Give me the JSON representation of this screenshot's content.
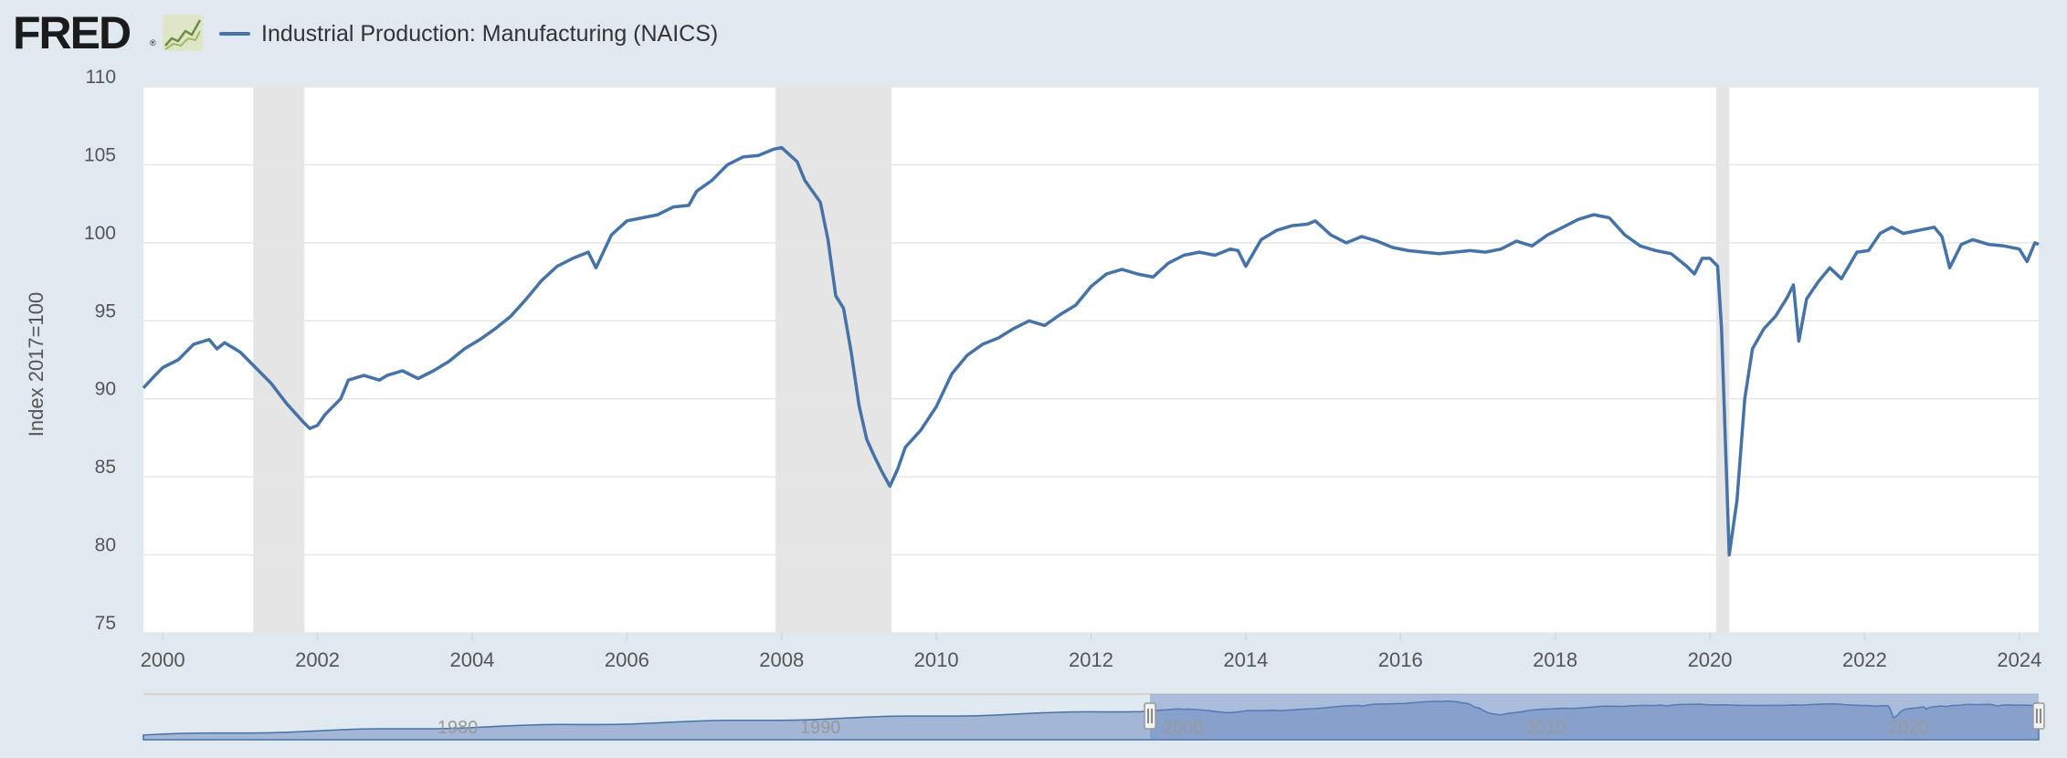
{
  "header": {
    "logo_text": "FRED",
    "logo_reg": "®",
    "logo_icon": "chart-line-icon",
    "legend_label": "Industrial Production: Manufacturing (NAICS)"
  },
  "colors": {
    "series": "#4572a7",
    "recession": "#e5e5e5",
    "plot_bg": "#ffffff",
    "page_bg": "#e1e9f0",
    "navigator_fill": "#8aa4d1"
  },
  "chart_data": {
    "type": "line",
    "title": "",
    "ylabel": "Index 2017=100",
    "xlabel": "",
    "x_range": [
      1999.75,
      2024.25
    ],
    "ylim": [
      75,
      110
    ],
    "y_ticks": [
      75,
      80,
      85,
      90,
      95,
      100,
      105,
      110
    ],
    "x_ticks": [
      2000,
      2002,
      2004,
      2006,
      2008,
      2010,
      2012,
      2014,
      2016,
      2018,
      2020,
      2022,
      2024
    ],
    "grid": "horizontal",
    "recessions": [
      [
        2001.17,
        2001.83
      ],
      [
        2007.92,
        2009.42
      ],
      [
        2020.08,
        2020.25
      ]
    ],
    "series": [
      {
        "name": "Industrial Production: Manufacturing (NAICS)",
        "points": [
          [
            1999.75,
            90.7
          ],
          [
            1999.9,
            91.5
          ],
          [
            2000.0,
            92.0
          ],
          [
            2000.2,
            92.5
          ],
          [
            2000.4,
            93.5
          ],
          [
            2000.6,
            93.8
          ],
          [
            2000.7,
            93.2
          ],
          [
            2000.8,
            93.6
          ],
          [
            2001.0,
            93.0
          ],
          [
            2001.2,
            92.0
          ],
          [
            2001.4,
            91.0
          ],
          [
            2001.6,
            89.7
          ],
          [
            2001.8,
            88.6
          ],
          [
            2001.9,
            88.1
          ],
          [
            2002.0,
            88.3
          ],
          [
            2002.1,
            89.0
          ],
          [
            2002.3,
            90.0
          ],
          [
            2002.4,
            91.2
          ],
          [
            2002.6,
            91.5
          ],
          [
            2002.8,
            91.2
          ],
          [
            2002.9,
            91.5
          ],
          [
            2003.1,
            91.8
          ],
          [
            2003.3,
            91.3
          ],
          [
            2003.5,
            91.8
          ],
          [
            2003.7,
            92.4
          ],
          [
            2003.9,
            93.2
          ],
          [
            2004.1,
            93.8
          ],
          [
            2004.3,
            94.5
          ],
          [
            2004.5,
            95.3
          ],
          [
            2004.7,
            96.4
          ],
          [
            2004.9,
            97.6
          ],
          [
            2005.1,
            98.5
          ],
          [
            2005.3,
            99.0
          ],
          [
            2005.5,
            99.4
          ],
          [
            2005.6,
            98.4
          ],
          [
            2005.8,
            100.5
          ],
          [
            2006.0,
            101.4
          ],
          [
            2006.2,
            101.6
          ],
          [
            2006.4,
            101.8
          ],
          [
            2006.6,
            102.3
          ],
          [
            2006.8,
            102.4
          ],
          [
            2006.9,
            103.3
          ],
          [
            2007.1,
            104.0
          ],
          [
            2007.3,
            105.0
          ],
          [
            2007.5,
            105.5
          ],
          [
            2007.7,
            105.6
          ],
          [
            2007.9,
            106.0
          ],
          [
            2008.0,
            106.1
          ],
          [
            2008.2,
            105.2
          ],
          [
            2008.3,
            104.0
          ],
          [
            2008.5,
            102.6
          ],
          [
            2008.6,
            100.2
          ],
          [
            2008.7,
            96.6
          ],
          [
            2008.8,
            95.8
          ],
          [
            2008.9,
            93.0
          ],
          [
            2009.0,
            89.6
          ],
          [
            2009.1,
            87.4
          ],
          [
            2009.2,
            86.3
          ],
          [
            2009.3,
            85.3
          ],
          [
            2009.4,
            84.4
          ],
          [
            2009.5,
            85.5
          ],
          [
            2009.6,
            86.9
          ],
          [
            2009.8,
            88.0
          ],
          [
            2010.0,
            89.5
          ],
          [
            2010.2,
            91.6
          ],
          [
            2010.4,
            92.8
          ],
          [
            2010.6,
            93.5
          ],
          [
            2010.8,
            93.9
          ],
          [
            2011.0,
            94.5
          ],
          [
            2011.2,
            95.0
          ],
          [
            2011.4,
            94.7
          ],
          [
            2011.6,
            95.4
          ],
          [
            2011.8,
            96.0
          ],
          [
            2012.0,
            97.2
          ],
          [
            2012.2,
            98.0
          ],
          [
            2012.4,
            98.3
          ],
          [
            2012.6,
            98.0
          ],
          [
            2012.8,
            97.8
          ],
          [
            2013.0,
            98.7
          ],
          [
            2013.2,
            99.2
          ],
          [
            2013.4,
            99.4
          ],
          [
            2013.6,
            99.2
          ],
          [
            2013.8,
            99.6
          ],
          [
            2013.9,
            99.5
          ],
          [
            2014.0,
            98.5
          ],
          [
            2014.2,
            100.2
          ],
          [
            2014.4,
            100.8
          ],
          [
            2014.6,
            101.1
          ],
          [
            2014.8,
            101.2
          ],
          [
            2014.9,
            101.4
          ],
          [
            2015.1,
            100.5
          ],
          [
            2015.3,
            100.0
          ],
          [
            2015.5,
            100.4
          ],
          [
            2015.7,
            100.1
          ],
          [
            2015.9,
            99.7
          ],
          [
            2016.1,
            99.5
          ],
          [
            2016.3,
            99.4
          ],
          [
            2016.5,
            99.3
          ],
          [
            2016.7,
            99.4
          ],
          [
            2016.9,
            99.5
          ],
          [
            2017.1,
            99.4
          ],
          [
            2017.3,
            99.6
          ],
          [
            2017.5,
            100.1
          ],
          [
            2017.7,
            99.8
          ],
          [
            2017.9,
            100.5
          ],
          [
            2018.1,
            101.0
          ],
          [
            2018.3,
            101.5
          ],
          [
            2018.5,
            101.8
          ],
          [
            2018.7,
            101.6
          ],
          [
            2018.9,
            100.5
          ],
          [
            2019.1,
            99.8
          ],
          [
            2019.3,
            99.5
          ],
          [
            2019.5,
            99.3
          ],
          [
            2019.7,
            98.5
          ],
          [
            2019.8,
            98.0
          ],
          [
            2019.9,
            99.0
          ],
          [
            2020.0,
            99.0
          ],
          [
            2020.1,
            98.5
          ],
          [
            2020.15,
            94.5
          ],
          [
            2020.25,
            80.0
          ],
          [
            2020.35,
            83.5
          ],
          [
            2020.45,
            90.0
          ],
          [
            2020.55,
            93.2
          ],
          [
            2020.7,
            94.5
          ],
          [
            2020.85,
            95.3
          ],
          [
            2021.0,
            96.5
          ],
          [
            2021.08,
            97.3
          ],
          [
            2021.15,
            93.7
          ],
          [
            2021.25,
            96.4
          ],
          [
            2021.4,
            97.5
          ],
          [
            2021.55,
            98.4
          ],
          [
            2021.7,
            97.7
          ],
          [
            2021.9,
            99.4
          ],
          [
            2022.05,
            99.5
          ],
          [
            2022.2,
            100.6
          ],
          [
            2022.35,
            101.0
          ],
          [
            2022.5,
            100.6
          ],
          [
            2022.7,
            100.8
          ],
          [
            2022.9,
            101.0
          ],
          [
            2023.0,
            100.4
          ],
          [
            2023.1,
            98.4
          ],
          [
            2023.25,
            99.9
          ],
          [
            2023.4,
            100.2
          ],
          [
            2023.6,
            99.9
          ],
          [
            2023.8,
            99.8
          ],
          [
            2024.0,
            99.6
          ],
          [
            2024.1,
            98.8
          ],
          [
            2024.2,
            100.0
          ],
          [
            2024.25,
            99.9
          ]
        ]
      }
    ],
    "navigator": {
      "x_ticks": [
        1980,
        1990,
        2000,
        2010,
        2020
      ],
      "range": [
        1972,
        2024.25
      ],
      "selected": [
        1999.75,
        2024.25
      ]
    }
  }
}
